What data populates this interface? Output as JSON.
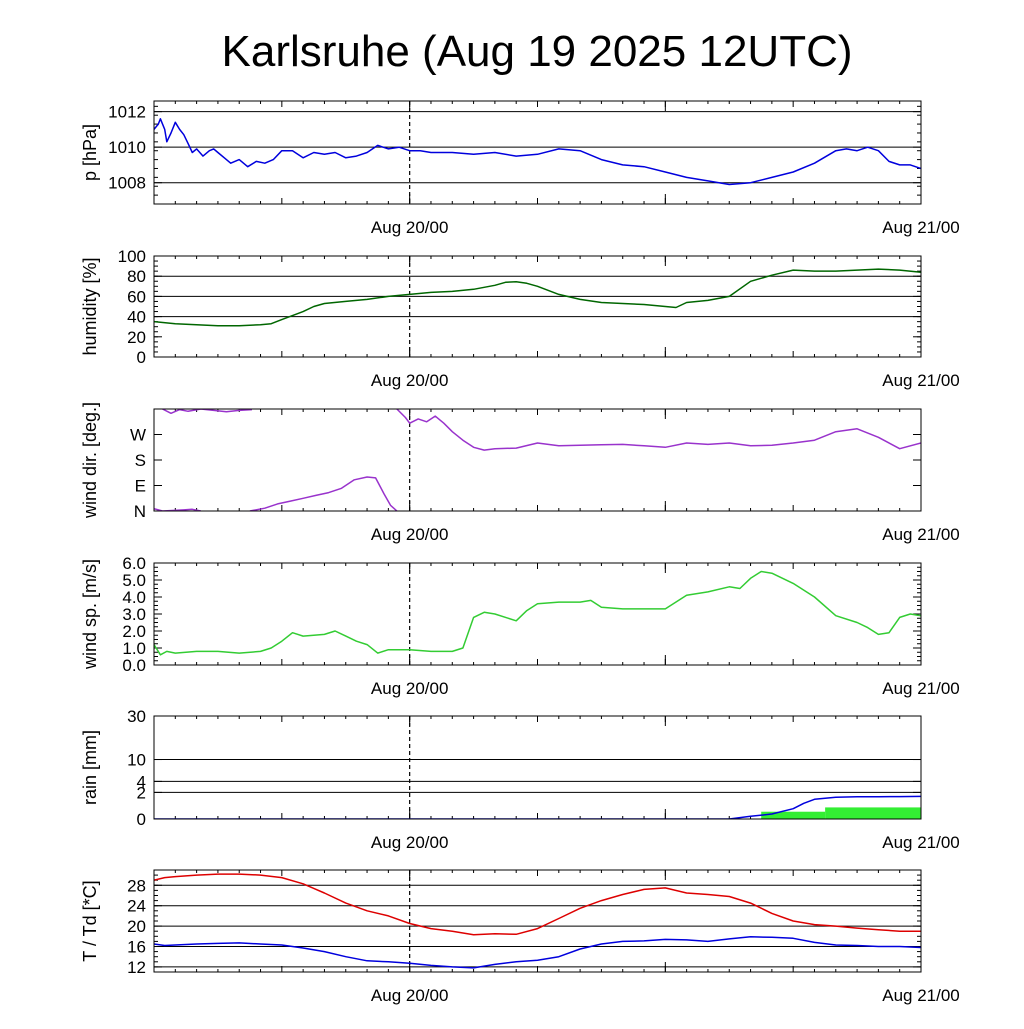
{
  "title": "Karlsruhe (Aug 19 2025 12UTC)",
  "chart_data": [
    {
      "type": "line",
      "ylabel": "p [hPa]",
      "ylim": [
        1006.8,
        1012.6
      ],
      "yticks": [
        "1012",
        "1010",
        "1008"
      ],
      "ytick_values": [
        1012,
        1010,
        1008
      ],
      "gridlines": [
        1012,
        1010,
        1008
      ],
      "xlim": [
        0,
        36
      ],
      "xtick_labels": [
        {
          "x": 12,
          "label": "Aug 20/00"
        },
        {
          "x": 36,
          "label": "Aug 21/00"
        }
      ],
      "marker_x": 12,
      "series": [
        {
          "color": "#0000dd",
          "x": [
            0,
            0.2,
            0.3,
            0.5,
            0.6,
            0.8,
            1.0,
            1.2,
            1.4,
            1.6,
            1.8,
            2.0,
            2.3,
            2.6,
            2.8,
            3.0,
            3.3,
            3.6,
            4.0,
            4.4,
            4.8,
            5.2,
            5.6,
            6.0,
            6.5,
            7.0,
            7.5,
            8.0,
            8.5,
            9.0,
            9.5,
            10.0,
            10.5,
            11.0,
            11.5,
            12.0,
            12.5,
            13.0,
            14.0,
            15.0,
            16.0,
            17.0,
            18.0,
            19.0,
            20.0,
            21.0,
            22.0,
            23.0,
            24.0,
            25.0,
            26.0,
            27.0,
            28.0,
            29.0,
            30.0,
            31.0,
            32.0,
            32.5,
            33.0,
            33.5,
            34.0,
            34.5,
            35.0,
            35.5,
            36.0
          ],
          "y": [
            1011.0,
            1011.3,
            1011.6,
            1011.0,
            1010.3,
            1010.8,
            1011.4,
            1011.0,
            1010.7,
            1010.2,
            1009.7,
            1009.9,
            1009.5,
            1009.8,
            1009.9,
            1009.7,
            1009.4,
            1009.1,
            1009.3,
            1008.9,
            1009.2,
            1009.1,
            1009.3,
            1009.8,
            1009.8,
            1009.4,
            1009.7,
            1009.6,
            1009.7,
            1009.4,
            1009.5,
            1009.7,
            1010.1,
            1009.9,
            1010.0,
            1009.8,
            1009.8,
            1009.7,
            1009.7,
            1009.6,
            1009.7,
            1009.5,
            1009.6,
            1009.9,
            1009.8,
            1009.3,
            1009.0,
            1008.9,
            1008.6,
            1008.3,
            1008.1,
            1007.9,
            1008.0,
            1008.3,
            1008.6,
            1009.1,
            1009.8,
            1009.9,
            1009.8,
            1010.0,
            1009.8,
            1009.2,
            1009.0,
            1009.0,
            1008.8
          ]
        }
      ]
    },
    {
      "type": "line",
      "ylabel": "humidity [%]",
      "ylim": [
        0,
        100
      ],
      "yticks": [
        "100",
        "80",
        "60",
        "40",
        "20",
        "0"
      ],
      "ytick_values": [
        100,
        80,
        60,
        40,
        20,
        0
      ],
      "gridlines": [
        80,
        60,
        40
      ],
      "xlim": [
        0,
        36
      ],
      "xtick_labels": [
        {
          "x": 12,
          "label": "Aug 20/00"
        },
        {
          "x": 36,
          "label": "Aug 21/00"
        }
      ],
      "marker_x": 12,
      "series": [
        {
          "color": "#006600",
          "x": [
            0,
            1,
            2,
            3,
            4,
            5,
            5.5,
            6,
            6.5,
            7,
            7.5,
            8,
            9,
            10,
            11,
            12,
            13,
            14,
            15,
            16,
            16.5,
            17,
            17.5,
            18,
            19,
            20,
            21,
            22,
            23,
            24,
            24.5,
            25,
            26,
            27,
            28,
            29,
            30,
            31,
            32,
            33,
            34,
            35,
            36
          ],
          "y": [
            35,
            33,
            32,
            31,
            31,
            32,
            33,
            37,
            41,
            45,
            50,
            53,
            55,
            57,
            60,
            62,
            64,
            65,
            67,
            71,
            74,
            74.5,
            73,
            70,
            62,
            57,
            54,
            53,
            52,
            50,
            49,
            54,
            56,
            60,
            75,
            81,
            86,
            85,
            85,
            86,
            87,
            86,
            84
          ]
        }
      ]
    },
    {
      "type": "scatter",
      "ylabel": "wind dir. [deg.]",
      "ylim": [
        0,
        360
      ],
      "yticks": [
        "W",
        "S",
        "E",
        "N"
      ],
      "ytick_values": [
        270,
        180,
        90,
        0
      ],
      "gridlines": [],
      "xlim": [
        0,
        36
      ],
      "xtick_labels": [
        {
          "x": 12,
          "label": "Aug 20/00"
        },
        {
          "x": 36,
          "label": "Aug 21/00"
        }
      ],
      "marker_x": 12,
      "series": [
        {
          "color": "#9933cc",
          "x": [
            0.4,
            0.8,
            1.2,
            1.6,
            2.2,
            2.8,
            3.4,
            4.0,
            4.6
          ],
          "y": [
            360,
            345,
            358,
            352,
            360,
            355,
            350,
            355,
            358
          ]
        },
        {
          "color": "#9933cc",
          "x": [
            0,
            0.4,
            1.4,
            1.8,
            2.2
          ],
          "y": [
            8,
            0,
            4,
            6,
            0
          ]
        },
        {
          "color": "#9933cc",
          "x": [
            4.5,
            5.2,
            5.8,
            6.4,
            7,
            7.6,
            8.2,
            8.8,
            9.4,
            10.0,
            10.4,
            10.8,
            11.1,
            11.4
          ],
          "y": [
            0,
            10,
            25,
            35,
            45,
            55,
            65,
            80,
            110,
            120,
            117,
            60,
            20,
            0
          ]
        },
        {
          "color": "#9933cc",
          "x": [
            11.4,
            11.8,
            12.0,
            12.4,
            12.8,
            13.2,
            13.6,
            14,
            14.5,
            15,
            15.5,
            16,
            17,
            18,
            19,
            20,
            21,
            22,
            23,
            24,
            25,
            26,
            27,
            28,
            29,
            30,
            31,
            32,
            33,
            34,
            35,
            36
          ],
          "y": [
            360,
            330,
            310,
            325,
            315,
            335,
            310,
            280,
            250,
            225,
            215,
            220,
            222,
            240,
            230,
            232,
            234,
            235,
            230,
            225,
            240,
            235,
            240,
            230,
            232,
            240,
            250,
            280,
            290,
            260,
            220,
            240
          ]
        }
      ]
    },
    {
      "type": "line",
      "ylabel": "wind sp. [m/s]",
      "ylim": [
        0,
        6
      ],
      "yticks": [
        "6.0",
        "5.0",
        "4.0",
        "3.0",
        "2.0",
        "1.0",
        "0.0"
      ],
      "ytick_values": [
        6,
        5,
        4,
        3,
        2,
        1,
        0
      ],
      "gridlines": [],
      "xlim": [
        0,
        36
      ],
      "xtick_labels": [
        {
          "x": 12,
          "label": "Aug 20/00"
        },
        {
          "x": 36,
          "label": "Aug 21/00"
        }
      ],
      "marker_x": 12,
      "series": [
        {
          "color": "#33cc33",
          "x": [
            0,
            0.3,
            0.6,
            1,
            2,
            3,
            4,
            5,
            5.5,
            6,
            6.5,
            7,
            8,
            8.5,
            9,
            9.5,
            10,
            10.5,
            11,
            12,
            13,
            14,
            14.5,
            15,
            15.5,
            16,
            17,
            17.5,
            18,
            19,
            20,
            20.5,
            21,
            22,
            23,
            24,
            25,
            26,
            27,
            27.5,
            28,
            28.5,
            29,
            30,
            31,
            32,
            33,
            33.5,
            34,
            34.5,
            35,
            35.5,
            36
          ],
          "y": [
            1.2,
            0.6,
            0.8,
            0.7,
            0.8,
            0.8,
            0.7,
            0.8,
            1.0,
            1.4,
            1.9,
            1.7,
            1.8,
            2.0,
            1.7,
            1.4,
            1.2,
            0.7,
            0.9,
            0.9,
            0.8,
            0.8,
            1.0,
            2.8,
            3.1,
            3.0,
            2.6,
            3.2,
            3.6,
            3.7,
            3.7,
            3.8,
            3.4,
            3.3,
            3.3,
            3.3,
            4.1,
            4.3,
            4.6,
            4.5,
            5.1,
            5.5,
            5.4,
            4.8,
            4.0,
            2.9,
            2.5,
            2.2,
            1.8,
            1.9,
            2.8,
            3.0,
            2.9
          ]
        }
      ]
    },
    {
      "type": "area",
      "ylabel": "rain [mm]",
      "scale": "sqrt",
      "ylim": [
        0,
        30
      ],
      "yticks": [
        "30",
        "10",
        "4",
        "2",
        "0"
      ],
      "ytick_values": [
        30,
        10,
        4,
        2,
        0
      ],
      "gridlines": [
        30,
        10,
        4,
        2
      ],
      "xlim": [
        0,
        36
      ],
      "xtick_labels": [
        {
          "x": 12,
          "label": "Aug 20/00"
        },
        {
          "x": 36,
          "label": "Aug 21/00"
        }
      ],
      "marker_x": 12,
      "series": [
        {
          "kind": "bars",
          "color": "#33ee33",
          "x": [
            28.5,
            31.5
          ],
          "widths": [
            3,
            4.5
          ],
          "y": [
            0.15,
            0.38
          ]
        },
        {
          "kind": "line",
          "color": "#0000dd",
          "x": [
            0,
            27,
            28,
            29,
            30,
            30.5,
            31,
            32,
            33,
            34,
            35,
            36
          ],
          "y": [
            0,
            0,
            0.02,
            0.07,
            0.3,
            0.7,
            1.1,
            1.35,
            1.4,
            1.4,
            1.42,
            1.45
          ]
        }
      ]
    },
    {
      "type": "line",
      "ylabel": "T / Td [*C]",
      "ylim": [
        11,
        31
      ],
      "yticks": [
        "28",
        "24",
        "20",
        "16",
        "12"
      ],
      "ytick_values": [
        28,
        24,
        20,
        16,
        12
      ],
      "gridlines": [
        28,
        24,
        20,
        16,
        12
      ],
      "xlim": [
        0,
        36
      ],
      "xtick_labels": [
        {
          "x": 12,
          "label": "Aug 20/00"
        },
        {
          "x": 36,
          "label": "Aug 21/00"
        }
      ],
      "marker_x": 12,
      "series": [
        {
          "color": "#dd0000",
          "x": [
            0,
            0.5,
            1,
            2,
            3,
            4,
            5,
            6,
            7,
            8,
            9,
            10,
            11,
            12,
            13,
            14,
            15,
            16,
            17,
            18,
            19,
            20,
            21,
            22,
            23,
            24,
            25,
            26,
            27,
            28,
            29,
            30,
            31,
            32,
            33,
            34,
            35,
            36
          ],
          "y": [
            29.0,
            29.5,
            29.7,
            30.0,
            30.2,
            30.2,
            30.0,
            29.5,
            28.3,
            26.5,
            24.5,
            23.0,
            22.0,
            20.5,
            19.5,
            19.0,
            18.3,
            18.5,
            18.4,
            19.5,
            21.5,
            23.5,
            25.0,
            26.2,
            27.2,
            27.5,
            26.5,
            26.2,
            25.8,
            24.5,
            22.5,
            21.0,
            20.3,
            20.0,
            19.6,
            19.3,
            19.0,
            19.0
          ]
        },
        {
          "color": "#0000dd",
          "x": [
            0,
            0.5,
            1,
            2,
            3,
            4,
            5,
            6,
            7,
            8,
            9,
            10,
            11,
            12,
            13,
            14,
            15,
            16,
            17,
            18,
            19,
            20,
            21,
            22,
            23,
            24,
            25,
            26,
            27,
            28,
            29,
            30,
            31,
            32,
            33,
            34,
            35,
            36
          ],
          "y": [
            16.5,
            16.2,
            16.3,
            16.5,
            16.6,
            16.7,
            16.5,
            16.3,
            15.7,
            15.0,
            14.0,
            13.2,
            13.0,
            12.7,
            12.3,
            12.0,
            11.8,
            12.5,
            13.0,
            13.3,
            14.0,
            15.5,
            16.5,
            17.0,
            17.1,
            17.4,
            17.3,
            17.0,
            17.5,
            17.9,
            17.8,
            17.6,
            16.8,
            16.3,
            16.2,
            16.0,
            16.0,
            15.8
          ]
        }
      ]
    }
  ]
}
